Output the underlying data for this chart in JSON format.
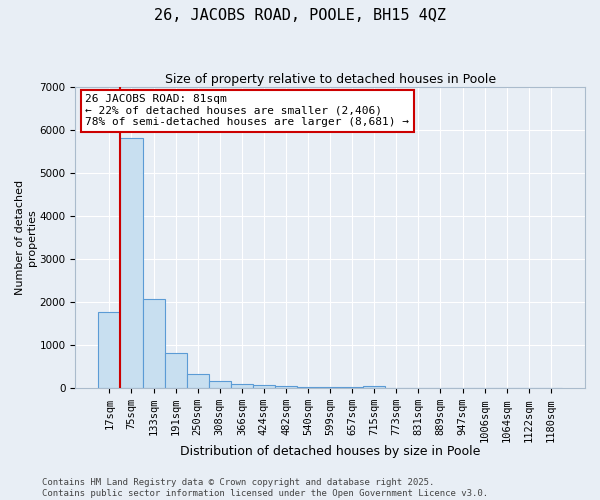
{
  "title1": "26, JACOBS ROAD, POOLE, BH15 4QZ",
  "title2": "Size of property relative to detached houses in Poole",
  "xlabel": "Distribution of detached houses by size in Poole",
  "ylabel": "Number of detached\nproperties",
  "categories": [
    "17sqm",
    "75sqm",
    "133sqm",
    "191sqm",
    "250sqm",
    "308sqm",
    "366sqm",
    "424sqm",
    "482sqm",
    "540sqm",
    "599sqm",
    "657sqm",
    "715sqm",
    "773sqm",
    "831sqm",
    "889sqm",
    "947sqm",
    "1006sqm",
    "1064sqm",
    "1122sqm",
    "1180sqm"
  ],
  "values": [
    1780,
    5820,
    2080,
    820,
    330,
    175,
    100,
    75,
    55,
    38,
    28,
    18,
    52,
    4,
    3,
    3,
    2,
    2,
    2,
    2,
    2
  ],
  "bar_color": "#c8dff0",
  "bar_edge_color": "#5b9bd5",
  "bg_color": "#e8eef5",
  "grid_color": "#ffffff",
  "vline_color": "#cc0000",
  "vline_x_pos": 0.5,
  "annotation_title": "26 JACOBS ROAD: 81sqm",
  "annotation_line1": "← 22% of detached houses are smaller (2,406)",
  "annotation_line2": "78% of semi-detached houses are larger (8,681) →",
  "annotation_box_facecolor": "#ffffff",
  "annotation_box_edgecolor": "#cc0000",
  "footer1": "Contains HM Land Registry data © Crown copyright and database right 2025.",
  "footer2": "Contains public sector information licensed under the Open Government Licence v3.0.",
  "ylim": [
    0,
    7000
  ],
  "yticks": [
    0,
    1000,
    2000,
    3000,
    4000,
    5000,
    6000,
    7000
  ],
  "title1_fontsize": 11,
  "title2_fontsize": 9,
  "xlabel_fontsize": 9,
  "ylabel_fontsize": 8,
  "tick_fontsize": 7.5,
  "footer_fontsize": 6.5
}
